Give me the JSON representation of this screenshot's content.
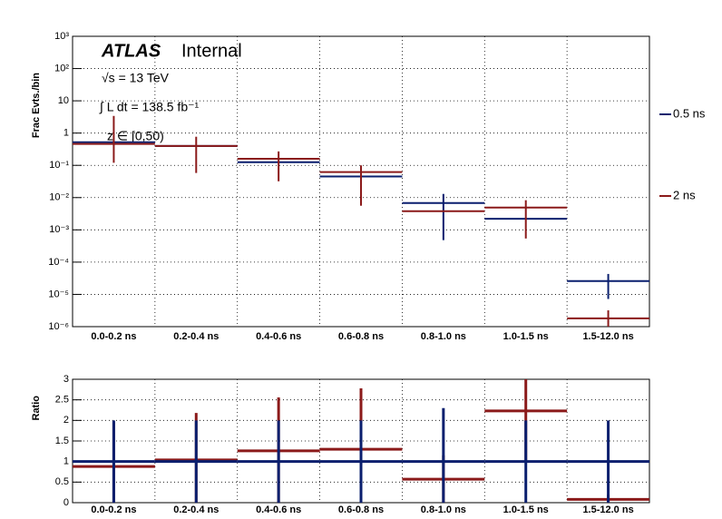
{
  "chart_data": [
    {
      "type": "errorbar",
      "y_label": "Frac Evts./bin",
      "ylog": true,
      "grid": true,
      "legend": "right",
      "annotations": [
        "ATLAS",
        "Internal",
        "√s = 13 TeV",
        "∫ L dt = 138.5 fb⁻¹",
        "z ∈ [0,50)"
      ],
      "categories": [
        "0.0-0.2 ns",
        "0.2-0.4 ns",
        "0.4-0.6 ns",
        "0.6-0.8 ns",
        "0.8-1.0 ns",
        "1.0-1.5 ns",
        "1.5-12.0 ns"
      ],
      "ylim": [
        1e-06,
        1000
      ],
      "yticks": [
        {
          "value": 1e-06,
          "label": "10⁻⁶"
        },
        {
          "value": 1e-05,
          "label": "10⁻⁵"
        },
        {
          "value": 0.0001,
          "label": "10⁻⁴"
        },
        {
          "value": 0.001,
          "label": "10⁻³"
        },
        {
          "value": 0.01,
          "label": "10⁻²"
        },
        {
          "value": 0.1,
          "label": "10⁻¹"
        },
        1,
        10,
        {
          "value": 100,
          "label": "10²"
        },
        {
          "value": 1000,
          "label": "10³"
        }
      ],
      "series": [
        {
          "name": "0.5 ns",
          "color": "#0a1f6e",
          "values": [
            0.52,
            0.4,
            0.125,
            0.045,
            0.0068,
            0.0022,
            2.6e-05
          ],
          "error_low": [
            null,
            null,
            null,
            null,
            0.00048,
            null,
            7.2e-06
          ],
          "error_high": [
            null,
            null,
            null,
            null,
            0.013,
            null,
            4.3e-05
          ]
        },
        {
          "name": "2 ns",
          "color": "#8b1a1a",
          "values": [
            0.46,
            0.4,
            0.16,
            0.062,
            0.0038,
            0.0049,
            1.8e-06
          ],
          "error_low": [
            0.12,
            0.058,
            0.032,
            0.0056,
            null,
            0.00054,
            1e-06
          ],
          "error_high": [
            3.4,
            0.77,
            0.27,
            0.1,
            null,
            0.0083,
            3.2e-06
          ]
        }
      ]
    },
    {
      "type": "errorbar",
      "y_label": "Ratio",
      "grid": true,
      "categories": [
        "0.0-0.2 ns",
        "0.2-0.4 ns",
        "0.4-0.6 ns",
        "0.6-0.8 ns",
        "0.8-1.0 ns",
        "1.0-1.5 ns",
        "1.5-12.0 ns"
      ],
      "ylim": [
        0,
        3
      ],
      "yticks": [
        0,
        0.5,
        1,
        1.5,
        2,
        2.5,
        3
      ],
      "series": [
        {
          "color": "#8b1a1a",
          "values": [
            0.88,
            1.04,
            1.26,
            1.3,
            0.57,
            2.23,
            0.08
          ],
          "error_low": [
            0,
            0,
            0,
            0,
            0,
            1,
            0
          ],
          "error_high": [
            1.96,
            2.18,
            2.56,
            2.78,
            1.15,
            3,
            0.2
          ]
        },
        {
          "color": "#0a1f6e",
          "values": [
            1,
            1,
            1,
            1,
            1,
            1,
            1
          ],
          "error_low": [
            0,
            0,
            0,
            0,
            0,
            0,
            0
          ],
          "error_high": [
            2,
            2,
            2,
            2,
            2.3,
            2,
            2
          ]
        }
      ]
    }
  ]
}
